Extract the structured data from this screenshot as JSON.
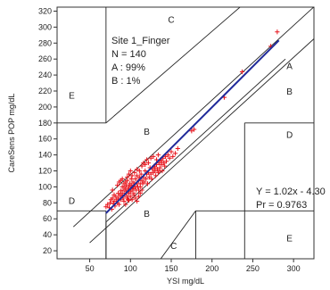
{
  "chart_data": {
    "type": "scatter",
    "xlabel": "YSI mg/dL",
    "ylabel": "CareSens POP mg/dL",
    "xlim": [
      10,
      325
    ],
    "ylim": [
      10,
      325
    ],
    "xticks": [
      50,
      100,
      150,
      200,
      250,
      300
    ],
    "yticks": [
      20,
      40,
      60,
      80,
      100,
      120,
      140,
      160,
      180,
      200,
      220,
      240,
      260,
      280,
      300,
      320
    ],
    "grid": false,
    "stats": {
      "title": "Site 1_Finger",
      "n": "N = 140",
      "a": "A : 99%",
      "b": "B : 1%"
    },
    "regression": {
      "equation": "Y = 1.02x - 4.30",
      "r": "Pr = 0.9763",
      "slope": 1.02,
      "intercept": -4.3,
      "x_range": [
        70,
        282
      ],
      "color": "#1f2a9a"
    },
    "point_color": "#e8141c",
    "zone_labels": [
      {
        "text": "E",
        "x": 28,
        "y": 215
      },
      {
        "text": "C",
        "x": 150,
        "y": 310
      },
      {
        "text": "B",
        "x": 120,
        "y": 170
      },
      {
        "text": "A",
        "x": 295,
        "y": 252
      },
      {
        "text": "B",
        "x": 295,
        "y": 220
      },
      {
        "text": "D",
        "x": 295,
        "y": 166
      },
      {
        "text": "D",
        "x": 28,
        "y": 83
      },
      {
        "text": "B",
        "x": 120,
        "y": 67
      },
      {
        "text": "C",
        "x": 153,
        "y": 27
      },
      {
        "text": "E",
        "x": 295,
        "y": 36
      }
    ],
    "zone_lines": [
      [
        [
          0,
          70
        ],
        [
          70,
          70
        ]
      ],
      [
        [
          70,
          70
        ],
        [
          70,
          0
        ]
      ],
      [
        [
          0,
          180
        ],
        [
          70,
          180
        ]
      ],
      [
        [
          70,
          180
        ],
        [
          70,
          330
        ]
      ],
      [
        [
          70,
          180
        ],
        [
          240,
          330
        ]
      ],
      [
        [
          30,
          50
        ],
        [
          330,
          330
        ]
      ],
      [
        [
          50,
          30
        ],
        [
          330,
          290
        ]
      ],
      [
        [
          70,
          0
        ],
        [
          70,
          56
        ]
      ],
      [
        [
          70,
          56
        ],
        [
          290,
          260
        ]
      ],
      [
        [
          130,
          0
        ],
        [
          180,
          70
        ]
      ],
      [
        [
          180,
          70
        ],
        [
          330,
          70
        ]
      ],
      [
        [
          180,
          0
        ],
        [
          180,
          70
        ]
      ],
      [
        [
          240,
          180
        ],
        [
          330,
          180
        ]
      ],
      [
        [
          240,
          180
        ],
        [
          240,
          0
        ]
      ]
    ],
    "values": [
      [
        70,
        75
      ],
      [
        72,
        78
      ],
      [
        74,
        74
      ],
      [
        75,
        80
      ],
      [
        76,
        84
      ],
      [
        77,
        72
      ],
      [
        78,
        86
      ],
      [
        79,
        79
      ],
      [
        80,
        82
      ],
      [
        80,
        90
      ],
      [
        81,
        76
      ],
      [
        82,
        88
      ],
      [
        83,
        84
      ],
      [
        84,
        80
      ],
      [
        85,
        92
      ],
      [
        85,
        86
      ],
      [
        86,
        78
      ],
      [
        87,
        90
      ],
      [
        88,
        95
      ],
      [
        88,
        84
      ],
      [
        89,
        88
      ],
      [
        90,
        100
      ],
      [
        90,
        92
      ],
      [
        91,
        86
      ],
      [
        92,
        96
      ],
      [
        92,
        104
      ],
      [
        93,
        90
      ],
      [
        94,
        98
      ],
      [
        95,
        94
      ],
      [
        95,
        102
      ],
      [
        96,
        88
      ],
      [
        96,
        108
      ],
      [
        97,
        96
      ],
      [
        98,
        100
      ],
      [
        98,
        92
      ],
      [
        99,
        104
      ],
      [
        100,
        98
      ],
      [
        100,
        94
      ],
      [
        101,
        102
      ],
      [
        101,
        110
      ],
      [
        102,
        96
      ],
      [
        103,
        100
      ],
      [
        103,
        106
      ],
      [
        104,
        98
      ],
      [
        104,
        92
      ],
      [
        105,
        104
      ],
      [
        106,
        100
      ],
      [
        106,
        110
      ],
      [
        107,
        96
      ],
      [
        108,
        104
      ],
      [
        108,
        114
      ],
      [
        109,
        100
      ],
      [
        110,
        108
      ],
      [
        110,
        96
      ],
      [
        111,
        112
      ],
      [
        112,
        104
      ],
      [
        112,
        100
      ],
      [
        113,
        116
      ],
      [
        114,
        108
      ],
      [
        115,
        104
      ],
      [
        96,
        86
      ],
      [
        98,
        83
      ],
      [
        100,
        88
      ],
      [
        102,
        84
      ],
      [
        104,
        90
      ],
      [
        106,
        86
      ],
      [
        108,
        82
      ],
      [
        110,
        88
      ],
      [
        112,
        92
      ],
      [
        114,
        96
      ],
      [
        116,
        112
      ],
      [
        117,
        106
      ],
      [
        118,
        120
      ],
      [
        119,
        110
      ],
      [
        120,
        116
      ],
      [
        121,
        104
      ],
      [
        122,
        118
      ],
      [
        123,
        112
      ],
      [
        124,
        124
      ],
      [
        125,
        116
      ],
      [
        126,
        110
      ],
      [
        127,
        122
      ],
      [
        128,
        118
      ],
      [
        129,
        126
      ],
      [
        130,
        120
      ],
      [
        131,
        114
      ],
      [
        132,
        128
      ],
      [
        133,
        122
      ],
      [
        134,
        118
      ],
      [
        135,
        130
      ],
      [
        136,
        124
      ],
      [
        137,
        134
      ],
      [
        138,
        128
      ],
      [
        139,
        120
      ],
      [
        140,
        136
      ],
      [
        141,
        130
      ],
      [
        142,
        126
      ],
      [
        143,
        138
      ],
      [
        144,
        132
      ],
      [
        146,
        140
      ],
      [
        148,
        136
      ],
      [
        150,
        144
      ],
      [
        152,
        138
      ],
      [
        155,
        142
      ],
      [
        158,
        148
      ],
      [
        84,
        102
      ],
      [
        86,
        106
      ],
      [
        88,
        108
      ],
      [
        90,
        110
      ],
      [
        92,
        100
      ],
      [
        94,
        106
      ],
      [
        96,
        112
      ],
      [
        98,
        116
      ],
      [
        100,
        120
      ],
      [
        102,
        114
      ],
      [
        105,
        118
      ],
      [
        108,
        122
      ],
      [
        111,
        120
      ],
      [
        114,
        126
      ],
      [
        116,
        130
      ],
      [
        118,
        128
      ],
      [
        120,
        134
      ],
      [
        122,
        130
      ],
      [
        125,
        136
      ],
      [
        128,
        138
      ],
      [
        130,
        124
      ],
      [
        132,
        134
      ],
      [
        134,
        140
      ],
      [
        136,
        120
      ],
      [
        138,
        132
      ],
      [
        175,
        170
      ],
      [
        178,
        172
      ],
      [
        215,
        212
      ],
      [
        237,
        244
      ],
      [
        272,
        276
      ],
      [
        280,
        294
      ],
      [
        92,
        82
      ],
      [
        94,
        78
      ],
      [
        97,
        84
      ],
      [
        78,
        96
      ]
    ]
  }
}
